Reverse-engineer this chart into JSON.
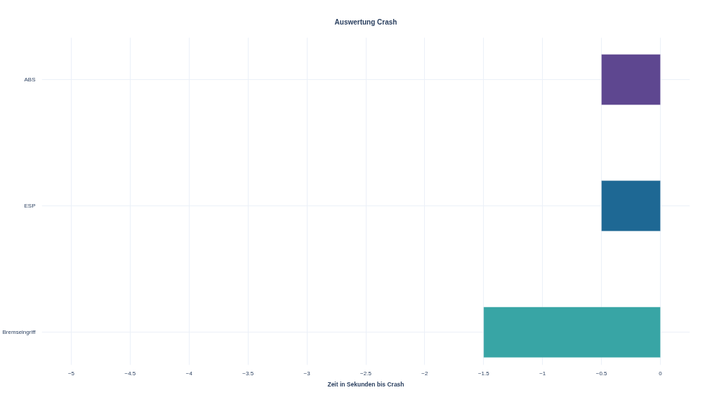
{
  "chart_data": {
    "type": "bar",
    "orientation": "horizontal",
    "title": "Auswertung Crash",
    "xlabel": "Zeit in Sekunden bis Crash",
    "categories": [
      "ABS",
      "ESP",
      "Bremseingriff"
    ],
    "values": [
      -0.5,
      -0.5,
      -1.5
    ],
    "colors": [
      "#5e4790",
      "#1e6894",
      "#38a5a5"
    ],
    "xlim": [
      -5.25,
      0.25
    ],
    "xticks": [
      {
        "value": -5,
        "label": "−5"
      },
      {
        "value": -4.5,
        "label": "−4.5"
      },
      {
        "value": -4,
        "label": "−4"
      },
      {
        "value": -3.5,
        "label": "−3.5"
      },
      {
        "value": -3,
        "label": "−3"
      },
      {
        "value": -2.5,
        "label": "−2.5"
      },
      {
        "value": -2,
        "label": "−2"
      },
      {
        "value": -1.5,
        "label": "−1.5"
      },
      {
        "value": -1,
        "label": "−1"
      },
      {
        "value": -0.5,
        "label": "−0.5"
      },
      0
    ],
    "grid": true
  }
}
